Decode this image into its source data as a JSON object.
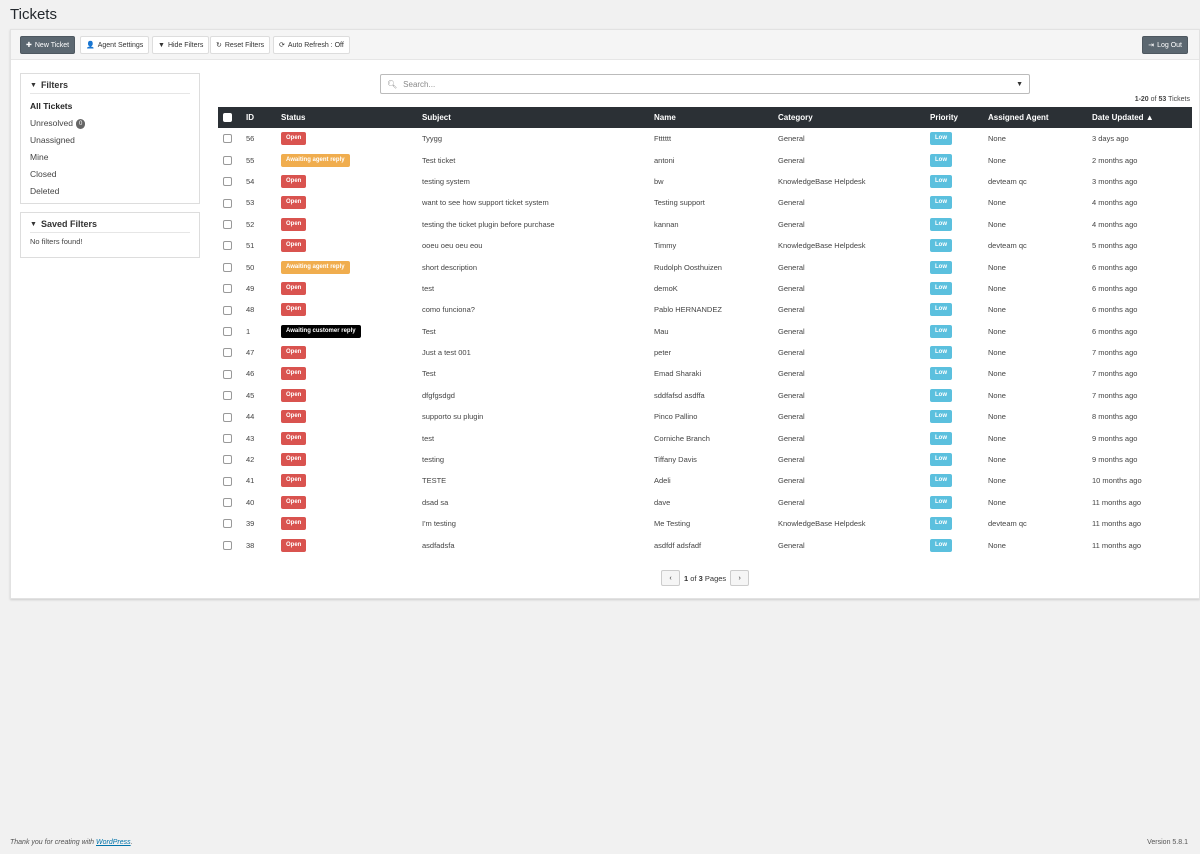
{
  "page": {
    "title": "Tickets"
  },
  "toolbar": {
    "new_ticket": "New Ticket",
    "agent_settings": "Agent Settings",
    "hide_filters": "Hide Filters",
    "reset_filters": "Reset Filters",
    "auto_refresh": "Auto Refresh : Off",
    "log_out": "Log Out"
  },
  "filters": {
    "title": "Filters",
    "items": [
      {
        "label": "All Tickets",
        "active": true
      },
      {
        "label": "Unresolved",
        "count": "0"
      },
      {
        "label": "Unassigned"
      },
      {
        "label": "Mine"
      },
      {
        "label": "Closed"
      },
      {
        "label": "Deleted"
      }
    ]
  },
  "saved_filters": {
    "title": "Saved Filters",
    "empty_text": "No filters found!"
  },
  "search": {
    "placeholder": "Search..."
  },
  "summary": {
    "range": "1-20",
    "of_word": "of",
    "total": "53",
    "unit": "Tickets"
  },
  "table": {
    "columns": [
      "ID",
      "Status",
      "Subject",
      "Name",
      "Category",
      "Priority",
      "Assigned Agent",
      "Date Updated"
    ],
    "sort_indicator": "▲",
    "rows": [
      {
        "id": "56",
        "status": "Open",
        "subject": "Tyygg",
        "name": "Ftttttt",
        "category": "General",
        "priority": "Low",
        "agent": "None",
        "date": "3 days ago"
      },
      {
        "id": "55",
        "status": "Awaiting agent reply",
        "subject": "Test ticket",
        "name": "antoni",
        "category": "General",
        "priority": "Low",
        "agent": "None",
        "date": "2 months ago"
      },
      {
        "id": "54",
        "status": "Open",
        "subject": "testing system",
        "name": "bw",
        "category": "KnowledgeBase Helpdesk",
        "priority": "Low",
        "agent": "devteam qc",
        "date": "3 months ago"
      },
      {
        "id": "53",
        "status": "Open",
        "subject": "want to see how support ticket system",
        "name": "Testing support",
        "category": "General",
        "priority": "Low",
        "agent": "None",
        "date": "4 months ago"
      },
      {
        "id": "52",
        "status": "Open",
        "subject": "testing the ticket plugin before purchase",
        "name": "kannan",
        "category": "General",
        "priority": "Low",
        "agent": "None",
        "date": "4 months ago"
      },
      {
        "id": "51",
        "status": "Open",
        "subject": "ooeu oeu oeu eou",
        "name": "Timmy",
        "category": "KnowledgeBase Helpdesk",
        "priority": "Low",
        "agent": "devteam qc",
        "date": "5 months ago"
      },
      {
        "id": "50",
        "status": "Awaiting agent reply",
        "subject": "short description",
        "name": "Rudolph Oosthuizen",
        "category": "General",
        "priority": "Low",
        "agent": "None",
        "date": "6 months ago"
      },
      {
        "id": "49",
        "status": "Open",
        "subject": "test",
        "name": "demoK",
        "category": "General",
        "priority": "Low",
        "agent": "None",
        "date": "6 months ago"
      },
      {
        "id": "48",
        "status": "Open",
        "subject": "como funciona?",
        "name": "Pablo HERNANDEZ",
        "category": "General",
        "priority": "Low",
        "agent": "None",
        "date": "6 months ago"
      },
      {
        "id": "1",
        "status": "Awaiting customer reply",
        "subject": "Test",
        "name": "Mau",
        "category": "General",
        "priority": "Low",
        "agent": "None",
        "date": "6 months ago"
      },
      {
        "id": "47",
        "status": "Open",
        "subject": "Just a test 001",
        "name": "peter",
        "category": "General",
        "priority": "Low",
        "agent": "None",
        "date": "7 months ago"
      },
      {
        "id": "46",
        "status": "Open",
        "subject": "Test",
        "name": "Emad Sharaki",
        "category": "General",
        "priority": "Low",
        "agent": "None",
        "date": "7 months ago"
      },
      {
        "id": "45",
        "status": "Open",
        "subject": "dfgfgsdgd",
        "name": "sddfafsd asdffa",
        "category": "General",
        "priority": "Low",
        "agent": "None",
        "date": "7 months ago"
      },
      {
        "id": "44",
        "status": "Open",
        "subject": "supporto su plugin",
        "name": "Pinco Pallino",
        "category": "General",
        "priority": "Low",
        "agent": "None",
        "date": "8 months ago"
      },
      {
        "id": "43",
        "status": "Open",
        "subject": "test",
        "name": "Corniche Branch",
        "category": "General",
        "priority": "Low",
        "agent": "None",
        "date": "9 months ago"
      },
      {
        "id": "42",
        "status": "Open",
        "subject": "testing",
        "name": "Tiffany Davis",
        "category": "General",
        "priority": "Low",
        "agent": "None",
        "date": "9 months ago"
      },
      {
        "id": "41",
        "status": "Open",
        "subject": "TESTE",
        "name": "Adeli",
        "category": "General",
        "priority": "Low",
        "agent": "None",
        "date": "10 months ago"
      },
      {
        "id": "40",
        "status": "Open",
        "subject": "dsad sa",
        "name": "dave",
        "category": "General",
        "priority": "Low",
        "agent": "None",
        "date": "11 months ago"
      },
      {
        "id": "39",
        "status": "Open",
        "subject": "I'm testing",
        "name": "Me Testing",
        "category": "KnowledgeBase Helpdesk",
        "priority": "Low",
        "agent": "devteam qc",
        "date": "11 months ago"
      },
      {
        "id": "38",
        "status": "Open",
        "subject": "asdfadsfa",
        "name": "asdfdf adsfadf",
        "category": "General",
        "priority": "Low",
        "agent": "None",
        "date": "11 months ago"
      }
    ]
  },
  "status_colors": {
    "Open": "#d9534f",
    "Awaiting agent reply": "#f0ad4e",
    "Awaiting customer reply": "#000000"
  },
  "priority_color": "#5bc0de",
  "pagination": {
    "current": "1",
    "of_word": "of",
    "total": "3",
    "unit": "Pages"
  },
  "footer": {
    "thanks_prefix": "Thank you for creating with",
    "link": "WordPress",
    "thanks_suffix": ".",
    "version": "Version 5.8.1"
  }
}
